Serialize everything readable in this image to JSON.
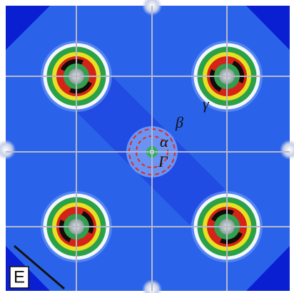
{
  "panel_label": "E",
  "labels": {
    "gamma_point": "Γ",
    "alpha": "α",
    "beta": "β",
    "gamma": "γ"
  }
}
